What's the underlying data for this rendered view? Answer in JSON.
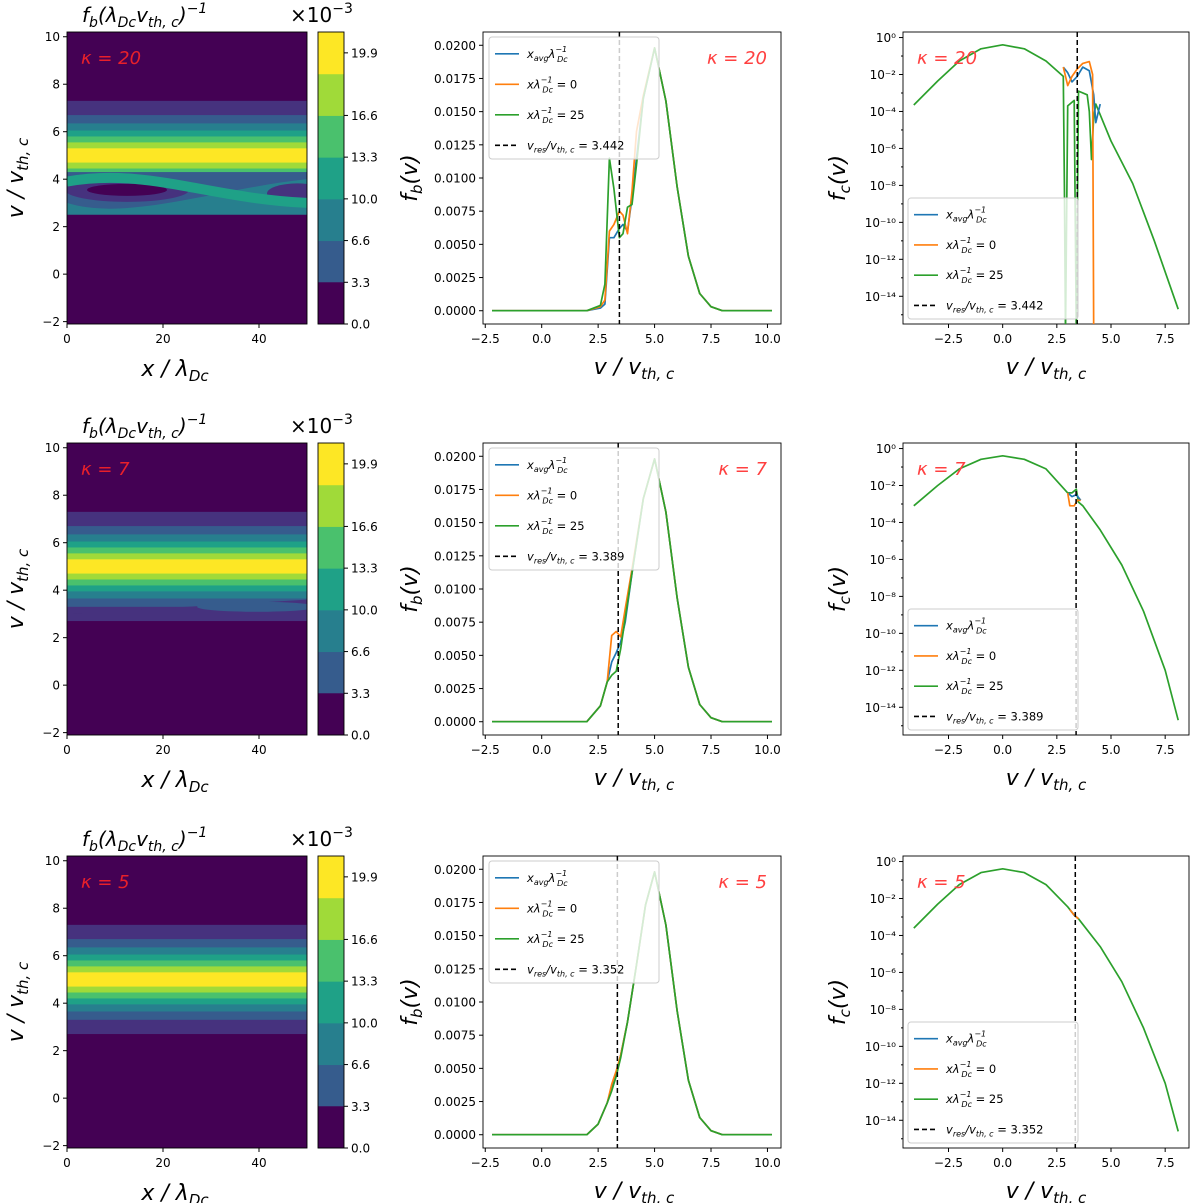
{
  "figure": {
    "rows": 3,
    "cols": 3
  },
  "labels": {
    "x_contour": "x / λ",
    "x_contour_sub": "Dc",
    "x_vel": "v / v",
    "x_vel_sub": "th, c",
    "y_contour": "v / v",
    "y_contour_sub": "th, c",
    "y_fb": "f",
    "y_fb_sub": "b",
    "y_fb_tail": "(v)",
    "y_fc": "f",
    "y_fc_sub": "c",
    "y_fc_tail": "(v)",
    "cbar_title_main": "f",
    "cbar_title_sub": "b",
    "cbar_title_paren": "(λ",
    "cbar_title_dc": "Dc",
    "cbar_title_v": "v",
    "cbar_title_th": "th, c",
    "cbar_title_close": ")",
    "cbar_title_exp": "−1",
    "cbar_scale_main": "×10",
    "cbar_scale_exp": "−3"
  },
  "legend": {
    "avg_x": "x",
    "avg_sub": "avg",
    "avg_lambda": "λ",
    "avg_exp": "−1",
    "avg_dc": "Dc",
    "x0_x": "xλ",
    "x0_exp": "−1",
    "x0_dc": "Dc",
    "x0_eq": " = 0",
    "x25_x": "xλ",
    "x25_exp": "−1",
    "x25_dc": "Dc",
    "x25_eq": " = 25",
    "res_v": "v",
    "res_sub": "res",
    "res_slash": "/v",
    "res_sub2": "th, c",
    "res_eq_prefix": " = "
  },
  "colors": {
    "blue": "#1f77b4",
    "orange": "#ff7f0e",
    "green": "#2ca02c",
    "kappa": "#ff4040",
    "kappa_contour": "#e8202a"
  },
  "chart_data": [
    {
      "type": "heatmap",
      "kappa": "κ = 20",
      "x_range": [
        0,
        50
      ],
      "y_range": [
        -2.1,
        10.2
      ],
      "xticks": [
        "0",
        "20",
        "40"
      ],
      "yticks": [
        "−2",
        "0",
        "2",
        "4",
        "6",
        "8",
        "10"
      ],
      "colorbar_ticks": [
        "0.0",
        "3.3",
        "6.6",
        "10.0",
        "13.3",
        "16.6",
        "19.9"
      ],
      "colorbar_scale": "×10−3",
      "beam_center_v": 5.0,
      "trap_amplitude": "strong"
    },
    {
      "type": "line",
      "kappa": "κ = 20",
      "xlim": [
        -2.6,
        10.6
      ],
      "ylim": [
        -0.001,
        0.021
      ],
      "xticks": [
        "−2.5",
        "0.0",
        "2.5",
        "5.0",
        "7.5",
        "10.0"
      ],
      "yticks": [
        "0.0000",
        "0.0025",
        "0.0050",
        "0.0075",
        "0.0100",
        "0.0125",
        "0.0150",
        "0.0175",
        "0.0200"
      ],
      "v_res": "3.442",
      "series": [
        {
          "name": "x_avg λ_Dc^-1",
          "x": [
            -2.2,
            2.0,
            2.6,
            2.8,
            3.0,
            3.2,
            3.44,
            3.6,
            3.8,
            4.0,
            4.2,
            4.5,
            5.0,
            5.5,
            6.0,
            6.5,
            7.0,
            7.5,
            8.0,
            9.0,
            10.2
          ],
          "y": [
            0.0,
            0.0,
            0.0002,
            0.0005,
            0.0055,
            0.0055,
            0.0062,
            0.0065,
            0.006,
            0.0085,
            0.0115,
            0.016,
            0.0198,
            0.0158,
            0.0093,
            0.0041,
            0.0013,
            0.0003,
            0.0,
            0.0,
            0.0
          ]
        },
        {
          "name": "x λ_Dc^-1 = 0",
          "x": [
            -2.2,
            2.0,
            2.6,
            2.8,
            3.0,
            3.2,
            3.44,
            3.6,
            3.8,
            4.0,
            4.2,
            4.5,
            5.0,
            5.5,
            6.0,
            6.5,
            7.0,
            7.5,
            8.0,
            9.0,
            10.2
          ],
          "y": [
            0.0,
            0.0,
            0.0003,
            0.0008,
            0.006,
            0.0065,
            0.0075,
            0.0072,
            0.0058,
            0.009,
            0.0135,
            0.0162,
            0.0198,
            0.0158,
            0.0093,
            0.0041,
            0.0013,
            0.0003,
            0.0,
            0.0,
            0.0
          ]
        },
        {
          "name": "x λ_Dc^-1 = 25",
          "x": [
            -2.2,
            2.0,
            2.6,
            2.8,
            3.0,
            3.2,
            3.44,
            3.6,
            3.8,
            4.0,
            4.2,
            4.5,
            5.0,
            5.5,
            6.0,
            6.5,
            7.0,
            7.5,
            8.0,
            9.0,
            10.2
          ],
          "y": [
            0.0,
            0.0,
            0.0004,
            0.002,
            0.0115,
            0.0092,
            0.0055,
            0.0058,
            0.0078,
            0.008,
            0.011,
            0.016,
            0.0198,
            0.0158,
            0.0093,
            0.0041,
            0.0013,
            0.0003,
            0.0,
            0.0,
            0.0
          ]
        }
      ]
    },
    {
      "type": "line",
      "kappa": "κ = 20",
      "y_scale": "log",
      "xlim": [
        -4.6,
        8.6
      ],
      "ylim_exp": [
        -15.5,
        0.3
      ],
      "xticks": [
        "−2.5",
        "0.0",
        "2.5",
        "5.0",
        "7.5"
      ],
      "yticks": [
        "10⁰",
        "10⁻²",
        "10⁻⁴",
        "10⁻⁶",
        "10⁻⁸",
        "10⁻¹⁰",
        "10⁻¹²",
        "10⁻¹⁴"
      ],
      "v_res": "3.442",
      "series": [
        {
          "name": "x_avg λ_Dc^-1",
          "x": [
            2.8,
            3.0,
            3.2,
            3.44,
            3.7,
            4.0,
            4.2,
            4.3,
            4.5
          ],
          "log10y": [
            -1.6,
            -1.9,
            -2.4,
            -2.1,
            -1.6,
            -1.8,
            -3.1,
            -4.6,
            -3.6
          ]
        },
        {
          "name": "x λ_Dc^-1 = 0",
          "x": [
            2.8,
            3.0,
            3.2,
            3.44,
            3.7,
            4.0,
            4.15,
            4.2,
            4.25,
            4.5
          ],
          "log10y": [
            -1.6,
            -2.6,
            -2.1,
            -1.7,
            -1.4,
            -1.3,
            -2.0,
            -16,
            -16,
            -16
          ]
        },
        {
          "name": "x λ_Dc^-1 = 25",
          "x": [
            -4.1,
            -3.0,
            -2.0,
            -1.0,
            0.0,
            1.0,
            2.0,
            2.8,
            2.85,
            2.9,
            3.0,
            3.3,
            3.4,
            3.5,
            3.9,
            4.0,
            4.1,
            4.2,
            4.3,
            5.0,
            6.0,
            7.0,
            8.1
          ],
          "log10y": [
            -3.65,
            -2.35,
            -1.27,
            -0.61,
            -0.39,
            -0.61,
            -1.27,
            -2.1,
            -8,
            -16,
            -3.7,
            -3.4,
            -16,
            -2.9,
            -3.1,
            -4.0,
            -6.6,
            -4.3,
            -3.6,
            -5.6,
            -7.9,
            -11.0,
            -14.7
          ]
        }
      ]
    },
    {
      "type": "heatmap",
      "kappa": "κ = 7",
      "x_range": [
        0,
        50
      ],
      "y_range": [
        -2.1,
        10.2
      ],
      "xticks": [
        "0",
        "20",
        "40"
      ],
      "yticks": [
        "−2",
        "0",
        "2",
        "4",
        "6",
        "8",
        "10"
      ],
      "colorbar_ticks": [
        "0.0",
        "3.3",
        "6.6",
        "10.0",
        "13.3",
        "16.6",
        "19.9"
      ],
      "colorbar_scale": "×10−3",
      "beam_center_v": 5.0,
      "trap_amplitude": "weak"
    },
    {
      "type": "line",
      "kappa": "κ = 7",
      "xlim": [
        -2.6,
        10.6
      ],
      "ylim": [
        -0.001,
        0.021
      ],
      "xticks": [
        "−2.5",
        "0.0",
        "2.5",
        "5.0",
        "7.5",
        "10.0"
      ],
      "yticks": [
        "0.0000",
        "0.0025",
        "0.0050",
        "0.0075",
        "0.0100",
        "0.0125",
        "0.0150",
        "0.0175",
        "0.0200"
      ],
      "v_res": "3.389",
      "series": [
        {
          "name": "x_avg λ_Dc^-1",
          "x": [
            -2.2,
            2.0,
            2.6,
            2.9,
            3.1,
            3.3,
            3.5,
            3.7,
            4.0,
            4.5,
            5.0,
            5.5,
            6.0,
            6.5,
            7.0,
            7.5,
            8.0,
            9.0,
            10.2
          ],
          "y": [
            0.0,
            0.0,
            0.0012,
            0.003,
            0.0045,
            0.0052,
            0.006,
            0.0075,
            0.0112,
            0.0168,
            0.0198,
            0.0158,
            0.0093,
            0.0041,
            0.0013,
            0.0003,
            0.0,
            0.0,
            0.0
          ]
        },
        {
          "name": "x λ_Dc^-1 = 0",
          "x": [
            -2.2,
            2.0,
            2.6,
            2.9,
            3.1,
            3.3,
            3.5,
            3.7,
            4.0,
            4.5,
            5.0,
            5.5,
            6.0,
            6.5,
            7.0,
            7.5,
            8.0,
            9.0,
            10.2
          ],
          "y": [
            0.0,
            0.0,
            0.0012,
            0.003,
            0.0065,
            0.0068,
            0.0064,
            0.0085,
            0.0115,
            0.0168,
            0.0198,
            0.0158,
            0.0093,
            0.0041,
            0.0013,
            0.0003,
            0.0,
            0.0,
            0.0
          ]
        },
        {
          "name": "x λ_Dc^-1 = 25",
          "x": [
            -2.2,
            2.0,
            2.6,
            2.9,
            3.1,
            3.3,
            3.5,
            3.7,
            4.0,
            4.5,
            5.0,
            5.5,
            6.0,
            6.5,
            7.0,
            7.5,
            8.0,
            9.0,
            10.2
          ],
          "y": [
            0.0,
            0.0,
            0.0012,
            0.003,
            0.0035,
            0.0038,
            0.0055,
            0.0078,
            0.0112,
            0.0168,
            0.0198,
            0.0158,
            0.0093,
            0.0041,
            0.0013,
            0.0003,
            0.0,
            0.0,
            0.0
          ]
        }
      ]
    },
    {
      "type": "line",
      "kappa": "κ = 7",
      "y_scale": "log",
      "xlim": [
        -4.6,
        8.6
      ],
      "ylim_exp": [
        -15.5,
        0.3
      ],
      "xticks": [
        "−2.5",
        "0.0",
        "2.5",
        "5.0",
        "7.5"
      ],
      "yticks": [
        "10⁰",
        "10⁻²",
        "10⁻⁴",
        "10⁻⁶",
        "10⁻⁸",
        "10⁻¹⁰",
        "10⁻¹²",
        "10⁻¹⁴"
      ],
      "v_res": "3.389",
      "series": [
        {
          "name": "x_avg λ_Dc^-1",
          "x": [
            3.0,
            3.2,
            3.4,
            3.6
          ],
          "log10y": [
            -2.4,
            -2.6,
            -2.5,
            -2.8
          ]
        },
        {
          "name": "x λ_Dc^-1 = 0",
          "x": [
            3.0,
            3.1,
            3.3,
            3.45,
            3.6
          ],
          "log10y": [
            -2.4,
            -3.1,
            -3.1,
            -2.8,
            -2.8
          ]
        },
        {
          "name": "x λ_Dc^-1 = 25",
          "x": [
            -4.1,
            -3.0,
            -2.0,
            -1.0,
            0.0,
            1.0,
            2.0,
            3.0,
            3.2,
            3.4,
            3.5,
            3.7,
            4.5,
            5.5,
            6.5,
            7.5,
            8.1
          ],
          "log10y": [
            -3.1,
            -2.0,
            -1.1,
            -0.58,
            -0.39,
            -0.58,
            -1.1,
            -2.4,
            -2.4,
            -2.2,
            -2.9,
            -3.1,
            -4.4,
            -6.3,
            -8.8,
            -12.0,
            -14.7
          ]
        }
      ]
    },
    {
      "type": "heatmap",
      "kappa": "κ = 5",
      "x_range": [
        0,
        50
      ],
      "y_range": [
        -2.1,
        10.2
      ],
      "xticks": [
        "0",
        "20",
        "40"
      ],
      "yticks": [
        "−2",
        "0",
        "2",
        "4",
        "6",
        "8",
        "10"
      ],
      "colorbar_ticks": [
        "0.0",
        "3.3",
        "6.6",
        "10.0",
        "13.3",
        "16.6",
        "19.9"
      ],
      "colorbar_scale": "×10−3",
      "beam_center_v": 5.0,
      "trap_amplitude": "none"
    },
    {
      "type": "line",
      "kappa": "κ = 5",
      "xlim": [
        -2.6,
        10.6
      ],
      "ylim": [
        -0.001,
        0.021
      ],
      "xticks": [
        "−2.5",
        "0.0",
        "2.5",
        "5.0",
        "7.5",
        "10.0"
      ],
      "yticks": [
        "0.0000",
        "0.0025",
        "0.0050",
        "0.0075",
        "0.0100",
        "0.0125",
        "0.0150",
        "0.0175",
        "0.0200"
      ],
      "v_res": "3.352",
      "series": [
        {
          "name": "x_avg λ_Dc^-1",
          "x": [
            -2.2,
            2.0,
            2.5,
            2.9,
            3.1,
            3.3,
            3.5,
            3.8,
            4.2,
            4.6,
            5.0,
            5.5,
            6.0,
            6.5,
            7.0,
            7.5,
            8.0,
            9.0,
            10.2
          ],
          "y": [
            0.0,
            0.0,
            0.0008,
            0.0024,
            0.0035,
            0.0046,
            0.006,
            0.0085,
            0.0128,
            0.0173,
            0.0198,
            0.0158,
            0.0093,
            0.0041,
            0.0013,
            0.0003,
            0.0,
            0.0,
            0.0
          ]
        },
        {
          "name": "x λ_Dc^-1 = 0",
          "x": [
            -2.2,
            2.0,
            2.5,
            2.9,
            3.1,
            3.3,
            3.5,
            3.8,
            4.2,
            4.6,
            5.0,
            5.5,
            6.0,
            6.5,
            7.0,
            7.5,
            8.0,
            9.0,
            10.2
          ],
          "y": [
            0.0,
            0.0,
            0.0008,
            0.0024,
            0.0038,
            0.0048,
            0.006,
            0.0085,
            0.0128,
            0.0173,
            0.0198,
            0.0158,
            0.0093,
            0.0041,
            0.0013,
            0.0003,
            0.0,
            0.0,
            0.0
          ]
        },
        {
          "name": "x λ_Dc^-1 = 25",
          "x": [
            -2.2,
            2.0,
            2.5,
            2.9,
            3.1,
            3.3,
            3.5,
            3.8,
            4.2,
            4.6,
            5.0,
            5.5,
            6.0,
            6.5,
            7.0,
            7.5,
            8.0,
            9.0,
            10.2
          ],
          "y": [
            0.0,
            0.0,
            0.0008,
            0.0024,
            0.0033,
            0.0044,
            0.0058,
            0.0085,
            0.0128,
            0.0173,
            0.0198,
            0.0158,
            0.0093,
            0.0041,
            0.0013,
            0.0003,
            0.0,
            0.0,
            0.0
          ]
        }
      ]
    },
    {
      "type": "line",
      "kappa": "κ = 5",
      "y_scale": "log",
      "xlim": [
        -4.6,
        8.6
      ],
      "ylim_exp": [
        -15.5,
        0.3
      ],
      "xticks": [
        "−2.5",
        "0.0",
        "2.5",
        "5.0",
        "7.5"
      ],
      "yticks": [
        "10⁰",
        "10⁻²",
        "10⁻⁴",
        "10⁻⁶",
        "10⁻⁸",
        "10⁻¹⁰",
        "10⁻¹²",
        "10⁻¹⁴"
      ],
      "v_res": "3.352",
      "series": [
        {
          "name": "x_avg λ_Dc^-1",
          "x": [
            3.1,
            3.3,
            3.5
          ],
          "log10y": [
            -2.6,
            -2.9,
            -3.1
          ]
        },
        {
          "name": "x λ_Dc^-1 = 0",
          "x": [
            3.1,
            3.3,
            3.5
          ],
          "log10y": [
            -2.6,
            -2.9,
            -3.1
          ]
        },
        {
          "name": "x λ_Dc^-1 = 25",
          "x": [
            -4.1,
            -3.0,
            -2.0,
            -1.0,
            0.0,
            1.0,
            2.0,
            3.0,
            3.3,
            3.5,
            4.5,
            5.5,
            6.5,
            7.5,
            8.1
          ],
          "log10y": [
            -3.6,
            -2.3,
            -1.25,
            -0.6,
            -0.39,
            -0.6,
            -1.25,
            -2.45,
            -2.9,
            -3.1,
            -4.6,
            -6.5,
            -9.0,
            -12.0,
            -14.6
          ]
        }
      ]
    }
  ]
}
